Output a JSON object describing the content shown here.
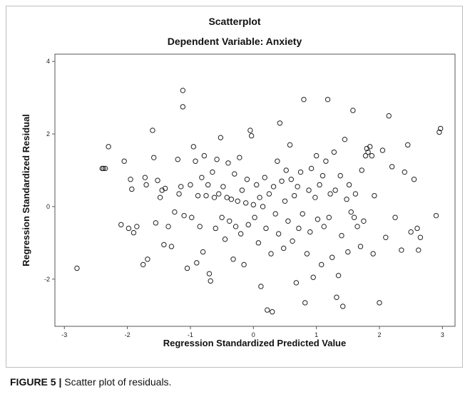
{
  "caption": {
    "label": "FIGURE 5 |",
    "text": "Scatter plot of residuals."
  },
  "chart_data": {
    "type": "scatter",
    "title": "Scatterplot",
    "subtitle": "Dependent Variable: Anxiety",
    "xlabel": "Regression Standardized Predicted Value",
    "ylabel": "Regression Standardized Residual",
    "xlim": [
      -3.15,
      3.2
    ],
    "ylim": [
      -3.3,
      4.2
    ],
    "xticks": [
      -3,
      -2,
      -1,
      0,
      1,
      2,
      3
    ],
    "yticks": [
      -2,
      0,
      2,
      4
    ],
    "grid": false,
    "marker": "open-circle",
    "series": [
      {
        "points": [
          [
            -2.8,
            -1.7
          ],
          [
            -2.4,
            1.05
          ],
          [
            -2.38,
            1.05
          ],
          [
            -2.35,
            1.05
          ],
          [
            -2.3,
            1.65
          ],
          [
            -2.1,
            -0.5
          ],
          [
            -2.05,
            1.25
          ],
          [
            -1.98,
            -0.6
          ],
          [
            -1.95,
            0.75
          ],
          [
            -1.93,
            0.48
          ],
          [
            -1.9,
            -0.72
          ],
          [
            -1.85,
            -0.55
          ],
          [
            -1.75,
            -1.6
          ],
          [
            -1.72,
            0.8
          ],
          [
            -1.7,
            0.6
          ],
          [
            -1.68,
            -1.45
          ],
          [
            -1.6,
            2.1
          ],
          [
            -1.58,
            1.35
          ],
          [
            -1.55,
            -0.45
          ],
          [
            -1.52,
            0.72
          ],
          [
            -1.48,
            0.25
          ],
          [
            -1.45,
            0.45
          ],
          [
            -1.42,
            -1.05
          ],
          [
            -1.4,
            0.5
          ],
          [
            -1.35,
            -0.55
          ],
          [
            -1.3,
            -1.1
          ],
          [
            -1.25,
            -0.15
          ],
          [
            -1.2,
            1.3
          ],
          [
            -1.18,
            0.35
          ],
          [
            -1.15,
            0.55
          ],
          [
            -1.12,
            3.2
          ],
          [
            -1.12,
            2.75
          ],
          [
            -1.1,
            -0.25
          ],
          [
            -1.05,
            -1.7
          ],
          [
            -1.0,
            0.6
          ],
          [
            -0.98,
            -0.3
          ],
          [
            -0.95,
            1.65
          ],
          [
            -0.92,
            1.25
          ],
          [
            -0.9,
            -1.55
          ],
          [
            -0.88,
            0.3
          ],
          [
            -0.85,
            -0.55
          ],
          [
            -0.82,
            0.8
          ],
          [
            -0.8,
            -1.25
          ],
          [
            -0.78,
            1.4
          ],
          [
            -0.75,
            0.3
          ],
          [
            -0.72,
            0.6
          ],
          [
            -0.7,
            -1.85
          ],
          [
            -0.68,
            -2.05
          ],
          [
            -0.65,
            0.95
          ],
          [
            -0.62,
            0.25
          ],
          [
            -0.6,
            -0.6
          ],
          [
            -0.58,
            1.3
          ],
          [
            -0.55,
            0.35
          ],
          [
            -0.52,
            1.9
          ],
          [
            -0.5,
            -0.3
          ],
          [
            -0.48,
            0.55
          ],
          [
            -0.45,
            -0.9
          ],
          [
            -0.42,
            0.25
          ],
          [
            -0.4,
            1.2
          ],
          [
            -0.38,
            -0.4
          ],
          [
            -0.35,
            0.2
          ],
          [
            -0.32,
            -1.45
          ],
          [
            -0.3,
            0.9
          ],
          [
            -0.28,
            -0.55
          ],
          [
            -0.25,
            0.15
          ],
          [
            -0.22,
            1.35
          ],
          [
            -0.2,
            -0.75
          ],
          [
            -0.18,
            0.45
          ],
          [
            -0.15,
            -1.6
          ],
          [
            -0.12,
            0.1
          ],
          [
            -0.1,
            0.75
          ],
          [
            -0.08,
            -0.5
          ],
          [
            -0.05,
            2.1
          ],
          [
            -0.03,
            1.95
          ],
          [
            0.0,
            0.05
          ],
          [
            0.02,
            -0.3
          ],
          [
            0.05,
            0.6
          ],
          [
            0.08,
            -1.0
          ],
          [
            0.1,
            0.25
          ],
          [
            0.12,
            -2.2
          ],
          [
            0.15,
            0.0
          ],
          [
            0.18,
            0.8
          ],
          [
            0.2,
            -0.6
          ],
          [
            0.22,
            -2.85
          ],
          [
            0.25,
            0.35
          ],
          [
            0.28,
            -1.3
          ],
          [
            0.3,
            -2.9
          ],
          [
            0.32,
            0.55
          ],
          [
            0.35,
            -0.2
          ],
          [
            0.38,
            1.25
          ],
          [
            0.4,
            -0.75
          ],
          [
            0.42,
            2.3
          ],
          [
            0.45,
            0.7
          ],
          [
            0.48,
            -1.15
          ],
          [
            0.5,
            0.15
          ],
          [
            0.52,
            1.0
          ],
          [
            0.55,
            -0.4
          ],
          [
            0.58,
            1.7
          ],
          [
            0.6,
            0.75
          ],
          [
            0.62,
            -0.95
          ],
          [
            0.65,
            0.3
          ],
          [
            0.68,
            -2.1
          ],
          [
            0.7,
            0.55
          ],
          [
            0.72,
            -0.6
          ],
          [
            0.75,
            0.95
          ],
          [
            0.78,
            -0.2
          ],
          [
            0.8,
            2.95
          ],
          [
            0.82,
            -2.65
          ],
          [
            0.85,
            -1.3
          ],
          [
            0.88,
            0.45
          ],
          [
            0.9,
            -0.7
          ],
          [
            0.92,
            1.05
          ],
          [
            0.95,
            -1.95
          ],
          [
            0.98,
            0.25
          ],
          [
            1.0,
            1.4
          ],
          [
            1.02,
            -0.35
          ],
          [
            1.05,
            0.6
          ],
          [
            1.08,
            -1.6
          ],
          [
            1.1,
            0.85
          ],
          [
            1.12,
            -0.55
          ],
          [
            1.15,
            1.25
          ],
          [
            1.18,
            2.95
          ],
          [
            1.2,
            -0.3
          ],
          [
            1.22,
            0.35
          ],
          [
            1.25,
            -1.4
          ],
          [
            1.28,
            1.5
          ],
          [
            1.3,
            0.45
          ],
          [
            1.32,
            -2.5
          ],
          [
            1.35,
            -1.9
          ],
          [
            1.38,
            0.85
          ],
          [
            1.4,
            -0.8
          ],
          [
            1.42,
            -2.75
          ],
          [
            1.45,
            1.85
          ],
          [
            1.48,
            0.2
          ],
          [
            1.5,
            -1.25
          ],
          [
            1.52,
            0.6
          ],
          [
            1.55,
            -0.15
          ],
          [
            1.58,
            2.65
          ],
          [
            1.6,
            -0.3
          ],
          [
            1.62,
            0.35
          ],
          [
            1.65,
            -0.55
          ],
          [
            1.7,
            -1.1
          ],
          [
            1.72,
            1.0
          ],
          [
            1.75,
            -0.4
          ],
          [
            1.78,
            1.4
          ],
          [
            1.8,
            1.6
          ],
          [
            1.82,
            1.5
          ],
          [
            1.85,
            1.65
          ],
          [
            1.88,
            1.4
          ],
          [
            1.9,
            -1.3
          ],
          [
            1.92,
            0.3
          ],
          [
            2.0,
            -2.65
          ],
          [
            2.05,
            1.55
          ],
          [
            2.1,
            -0.85
          ],
          [
            2.15,
            2.5
          ],
          [
            2.2,
            1.1
          ],
          [
            2.25,
            -0.3
          ],
          [
            2.35,
            -1.2
          ],
          [
            2.4,
            0.95
          ],
          [
            2.45,
            1.7
          ],
          [
            2.5,
            -0.7
          ],
          [
            2.55,
            0.75
          ],
          [
            2.6,
            -0.6
          ],
          [
            2.62,
            -1.2
          ],
          [
            2.65,
            -0.85
          ],
          [
            2.9,
            -0.25
          ],
          [
            2.95,
            2.05
          ],
          [
            2.97,
            2.15
          ]
        ]
      }
    ]
  }
}
